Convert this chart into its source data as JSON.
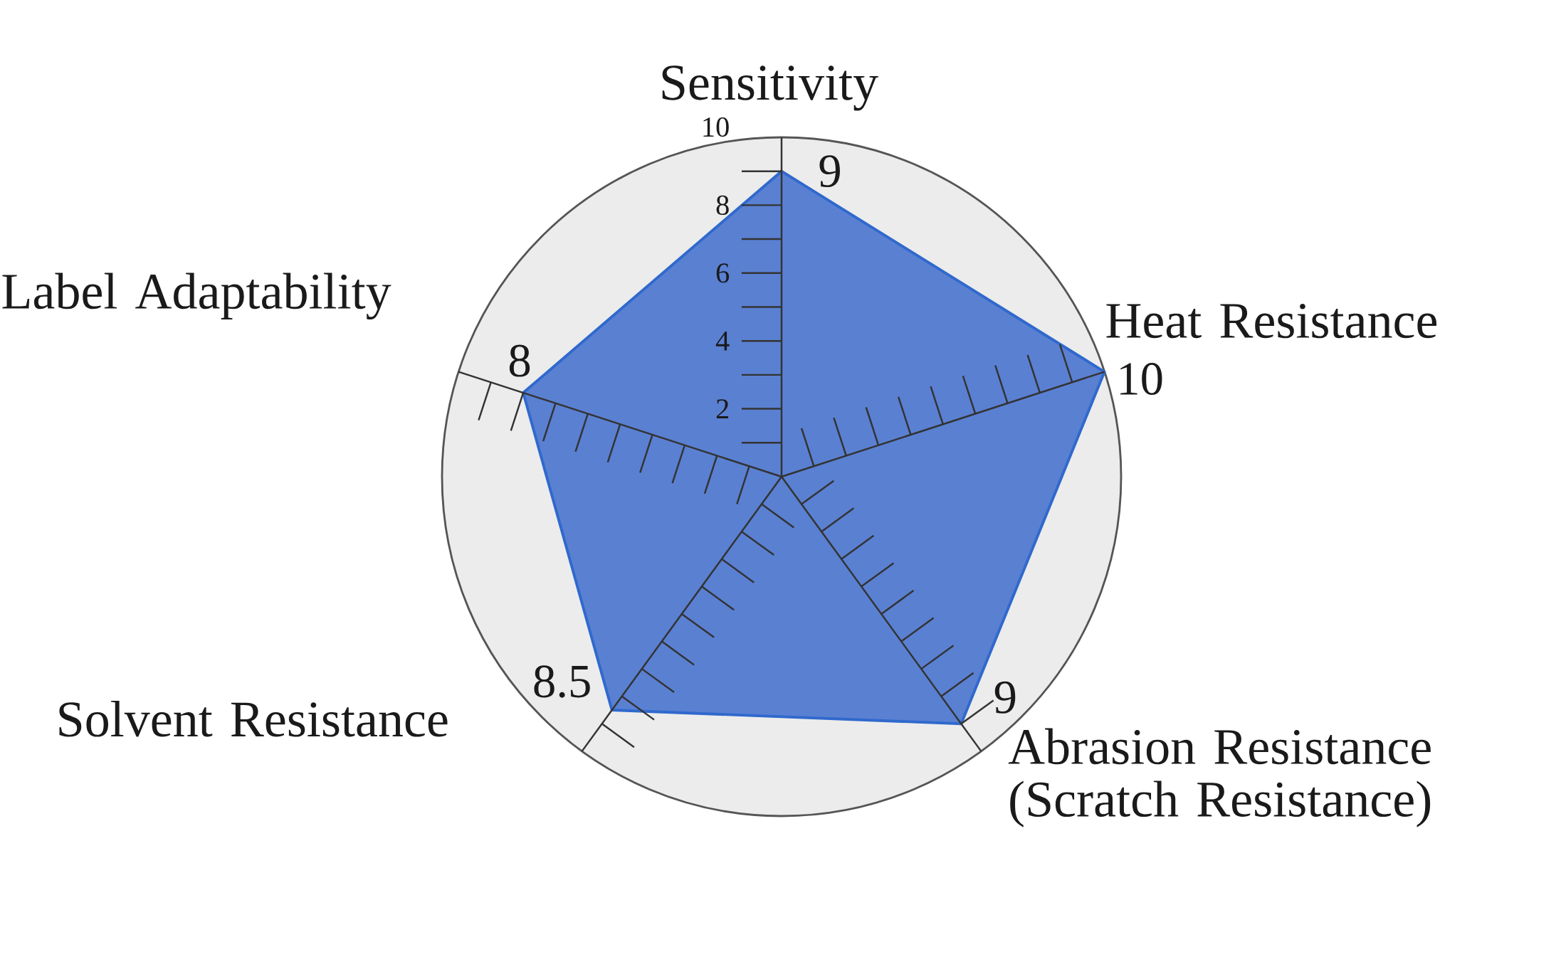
{
  "chart_data": {
    "type": "radar",
    "categories": [
      "Sensitivity",
      "Heat Resistance",
      "Abrasion Resistance (Scratch Resistance)",
      "Solvent Resistance",
      "Label Adaptability"
    ],
    "series": [
      {
        "color": "#5a80d2",
        "values": [
          9,
          10,
          9,
          8.5,
          8
        ]
      }
    ],
    "ylim": [
      0,
      10
    ],
    "yticks": [
      2,
      4,
      6,
      8,
      10
    ],
    "data_labels": true
  }
}
